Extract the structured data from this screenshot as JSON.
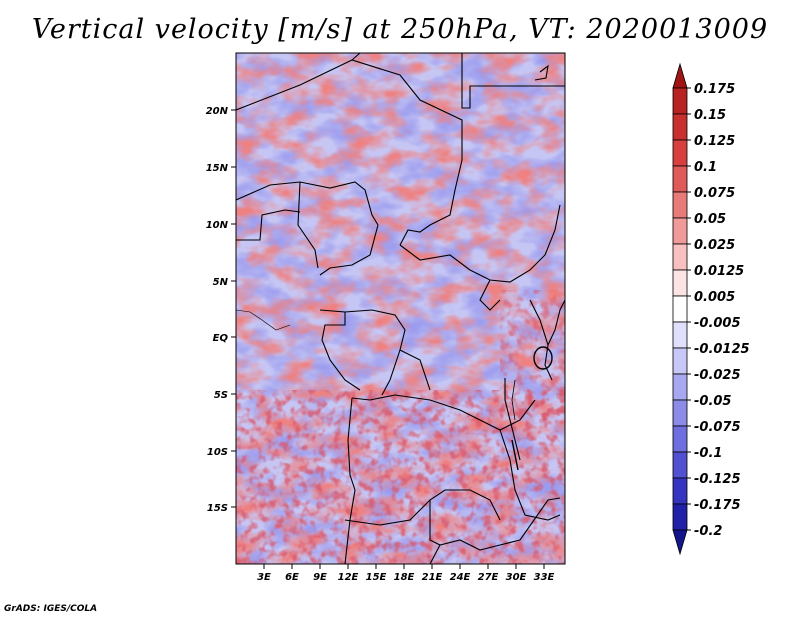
{
  "title": "Vertical velocity [m/s] at 250hPa, VT: 2020013009",
  "credit": "GrADS: IGES/COLA",
  "map": {
    "region": "Central Africa",
    "lat_labels": [
      "20N",
      "15N",
      "10N",
      "5N",
      "EQ",
      "5S",
      "10S",
      "15S"
    ],
    "lon_labels": [
      "3E",
      "6E",
      "9E",
      "12E",
      "15E",
      "18E",
      "21E",
      "24E",
      "27E",
      "30E",
      "33E"
    ]
  },
  "colorbar": {
    "labels": [
      "0.175",
      "0.15",
      "0.125",
      "0.1",
      "0.075",
      "0.05",
      "0.025",
      "0.0125",
      "0.005",
      "-0.005",
      "-0.0125",
      "-0.025",
      "-0.05",
      "-0.075",
      "-0.1",
      "-0.125",
      "-0.175",
      "-0.2"
    ],
    "colors": [
      "#a01414",
      "#b82222",
      "#c83030",
      "#d84040",
      "#e05a5a",
      "#e87a7a",
      "#f09a9a",
      "#f8c0c0",
      "#fce4e4",
      "#ffffff",
      "#e0e0fc",
      "#c8c8f8",
      "#a8a8f0",
      "#8c8ce8",
      "#6e6ee0",
      "#5050d0",
      "#3434c0",
      "#2020a8",
      "#14148c"
    ]
  },
  "colors": {
    "positive": "#c83030",
    "negative": "#5050d0",
    "border": "#000000"
  }
}
